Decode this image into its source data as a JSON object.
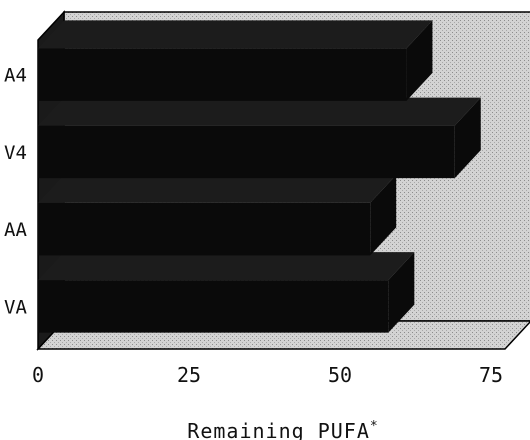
{
  "chart_data": {
    "type": "bar",
    "orientation": "horizontal",
    "style": "3d",
    "categories": [
      "VA",
      "AA",
      "V4",
      "A4"
    ],
    "values": [
      58,
      55,
      69,
      61
    ],
    "xlabel": "Remaining PUFA",
    "xlabel_mark": "*",
    "ylabel": "",
    "xlim": [
      0,
      75
    ],
    "xticks": [
      0,
      25,
      50,
      75
    ],
    "grid": false,
    "legend": "none",
    "colors": {
      "bar": "#0a0a0a",
      "bar_top": "#1c1c1c",
      "back_wall": "#c9c9c9",
      "floor": "#d6d6d6",
      "frame": "#000000"
    }
  }
}
